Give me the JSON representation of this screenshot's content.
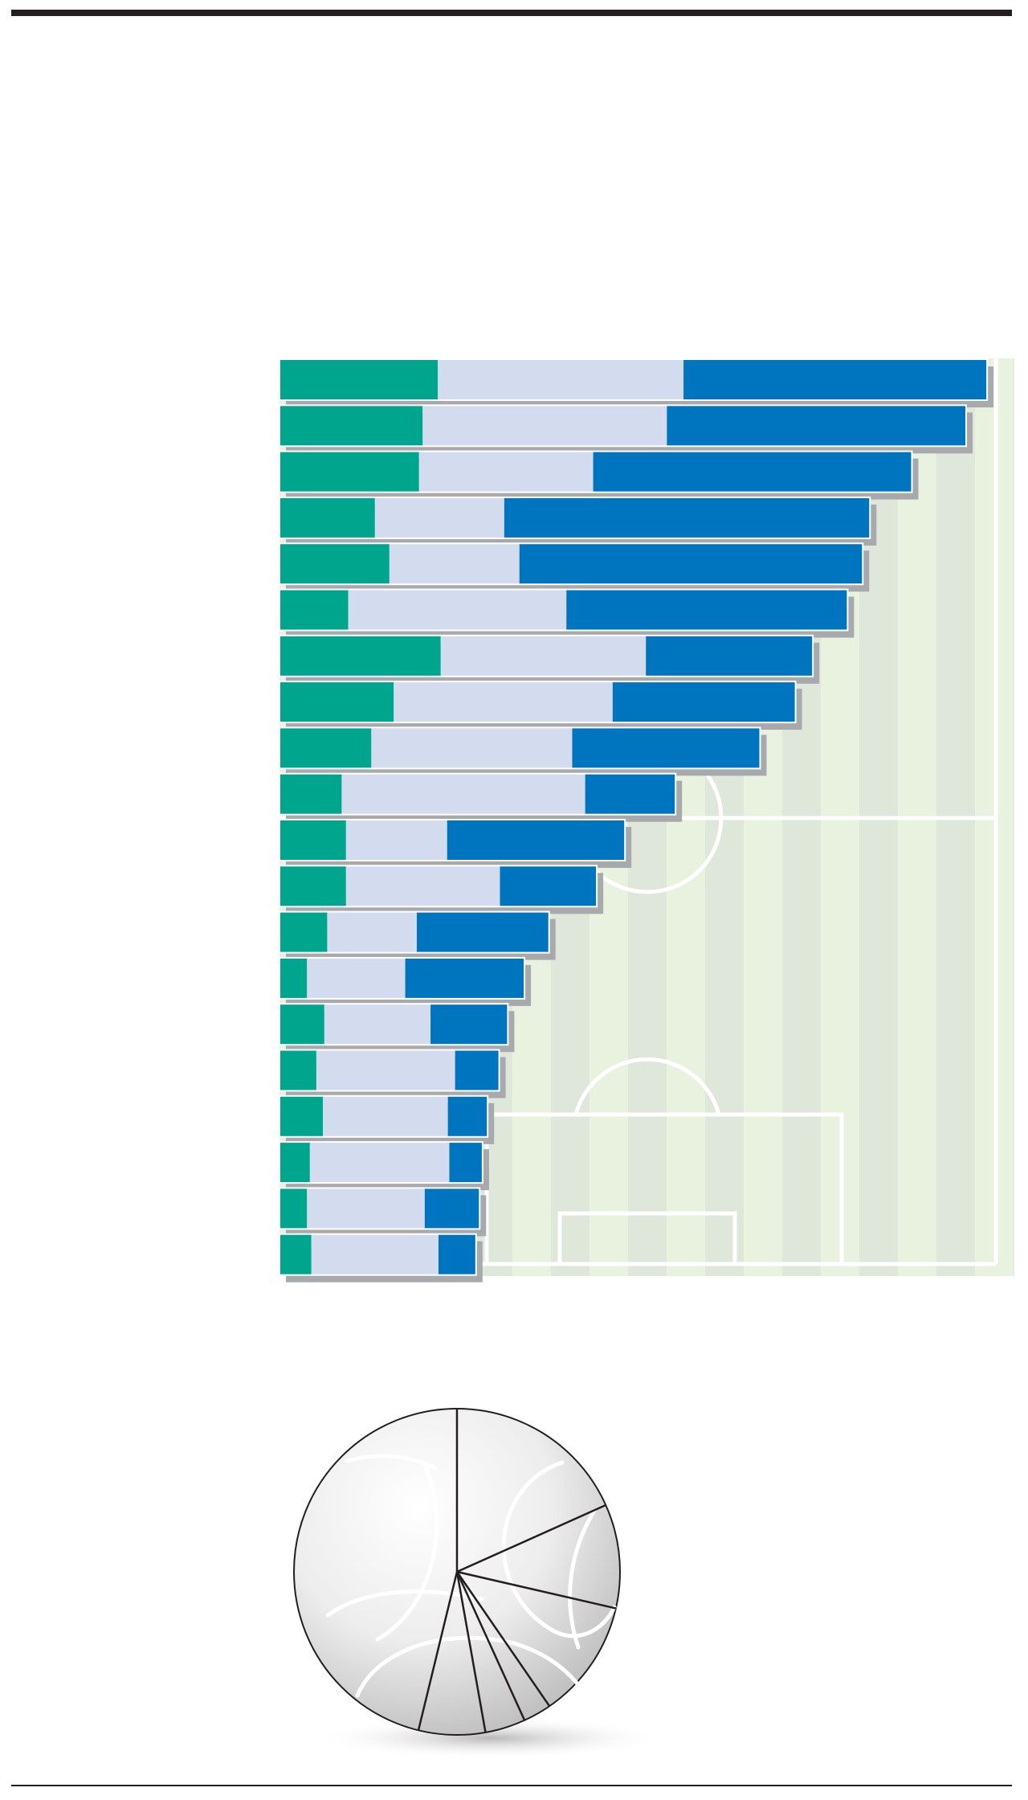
{
  "colors": {
    "segment_1": "#00a58e",
    "segment_2": "#d3dcee",
    "segment_3": "#0075bf",
    "pitch_light": "#e8f2de",
    "pitch_dark": "#dfe6da",
    "pitch_lines": "#ffffff",
    "shadow": "#a7a9ac",
    "rule": "#231f20"
  },
  "icons": {
    "pitch": "football-pitch-icon",
    "ball": "football-ball-icon"
  },
  "chart_data": [
    {
      "type": "bar",
      "orientation": "horizontal",
      "stacked": true,
      "title": "",
      "xlabel": "",
      "ylabel": "",
      "xlim": [
        0,
        100
      ],
      "grid": false,
      "legend": "none",
      "categories": [
        "",
        "",
        "",
        "",
        "",
        "",
        "",
        "",
        "",
        "",
        "",
        "",
        "",
        "",
        "",
        "",
        "",
        "",
        "",
        ""
      ],
      "series": [
        {
          "color": "#00a58e",
          "values": [
            21.9,
            19.8,
            19.3,
            13.2,
            15.2,
            9.5,
            22.3,
            15.8,
            12.7,
            8.6,
            9.2,
            9.2,
            6.6,
            3.8,
            6.2,
            5.1,
            6.0,
            4.2,
            3.8,
            4.4
          ]
        },
        {
          "color": "#d3dcee",
          "values": [
            34.0,
            33.8,
            24.1,
            17.9,
            18.0,
            30.2,
            28.4,
            30.3,
            27.8,
            33.7,
            14.0,
            21.3,
            12.4,
            13.6,
            14.7,
            19.2,
            17.3,
            19.3,
            16.3,
            17.6
          ]
        },
        {
          "color": "#0075bf",
          "values": [
            42.0,
            41.4,
            44.1,
            50.6,
            47.5,
            38.9,
            23.1,
            25.3,
            26.0,
            12.5,
            24.6,
            13.4,
            18.3,
            16.5,
            10.7,
            6.1,
            5.5,
            4.6,
            7.6,
            5.2
          ]
        }
      ]
    },
    {
      "type": "pie",
      "title": "",
      "legend": "none",
      "labels": [
        "",
        "",
        "",
        "",
        "",
        "",
        ""
      ],
      "values": [
        18.3,
        10.3,
        11.8,
        2.8,
        4.0,
        6.6,
        46.2
      ]
    }
  ]
}
